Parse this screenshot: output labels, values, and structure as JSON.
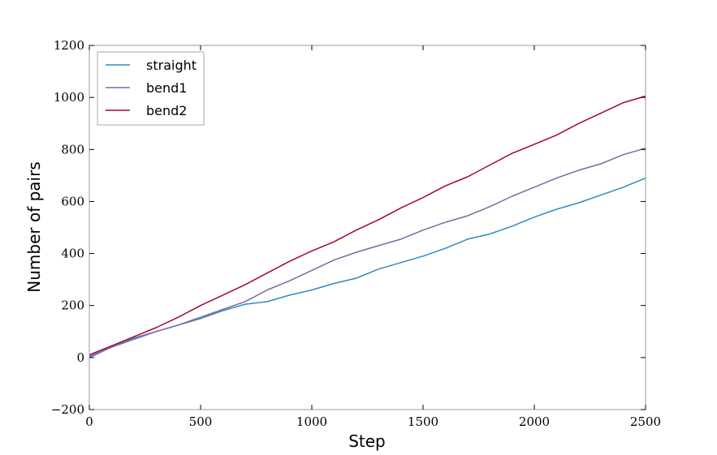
{
  "chart_data": {
    "type": "line",
    "title": "",
    "xlabel": "Step",
    "ylabel": "Number of pairs",
    "xlim": [
      0,
      2500
    ],
    "ylim": [
      -200,
      1200
    ],
    "xticks": [
      0,
      500,
      1000,
      1500,
      2000,
      2500
    ],
    "yticks": [
      -200,
      0,
      200,
      400,
      600,
      800,
      1000,
      1200
    ],
    "xtick_labels": [
      "0",
      "500",
      "1000",
      "1500",
      "2000",
      "2500"
    ],
    "ytick_labels": [
      "−200",
      "0",
      "200",
      "400",
      "600",
      "800",
      "1000",
      "1200"
    ],
    "grid": false,
    "legend_position": "top-left",
    "series": [
      {
        "name": "straight",
        "color": "#348ABD",
        "x": [
          0,
          100,
          200,
          300,
          400,
          500,
          600,
          700,
          800,
          900,
          1000,
          1100,
          1200,
          1300,
          1400,
          1500,
          1600,
          1700,
          1800,
          1900,
          2000,
          2100,
          2200,
          2300,
          2400,
          2500
        ],
        "y": [
          0,
          40,
          70,
          100,
          125,
          150,
          180,
          205,
          215,
          240,
          260,
          285,
          305,
          340,
          365,
          390,
          420,
          455,
          475,
          505,
          540,
          570,
          595,
          625,
          655,
          690
        ]
      },
      {
        "name": "bend1",
        "color": "#7A68A6",
        "x": [
          0,
          100,
          200,
          300,
          400,
          500,
          600,
          700,
          800,
          900,
          1000,
          1100,
          1200,
          1300,
          1400,
          1500,
          1600,
          1700,
          1800,
          1900,
          2000,
          2100,
          2200,
          2300,
          2400,
          2500
        ],
        "y": [
          5,
          40,
          75,
          100,
          125,
          155,
          185,
          215,
          260,
          295,
          335,
          375,
          405,
          430,
          455,
          490,
          520,
          545,
          580,
          620,
          655,
          690,
          720,
          745,
          780,
          805
        ]
      },
      {
        "name": "bend2",
        "color": "#A60628",
        "x": [
          0,
          100,
          200,
          300,
          400,
          500,
          600,
          700,
          800,
          900,
          1000,
          1100,
          1200,
          1300,
          1400,
          1500,
          1600,
          1700,
          1800,
          1900,
          2000,
          2100,
          2200,
          2300,
          2400,
          2500
        ],
        "y": [
          10,
          45,
          80,
          115,
          155,
          200,
          240,
          280,
          325,
          370,
          410,
          445,
          490,
          530,
          575,
          615,
          660,
          695,
          740,
          785,
          820,
          855,
          900,
          940,
          980,
          1005
        ]
      }
    ]
  }
}
